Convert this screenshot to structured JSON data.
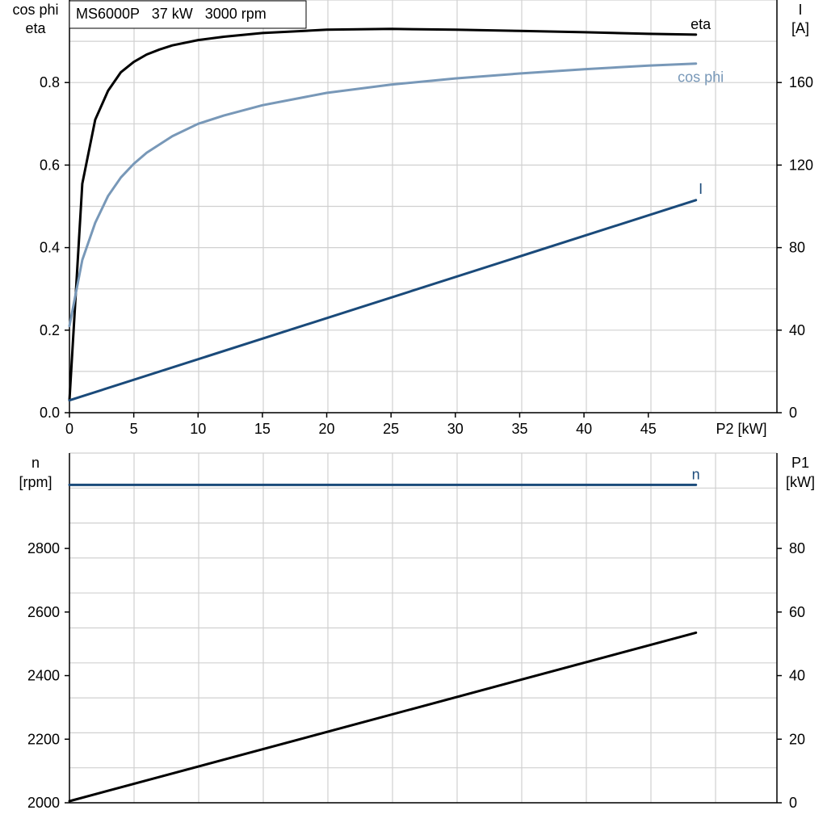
{
  "title": "MS6000P   37 kW   3000 rpm",
  "chart_data": [
    {
      "type": "line",
      "xlabel": "P2 [kW]",
      "xlim": [
        0,
        55
      ],
      "x_ticks": [
        "0",
        "5",
        "10",
        "15",
        "20",
        "25",
        "30",
        "35",
        "40",
        "45"
      ],
      "ylabel_left": [
        "cos phi",
        "eta"
      ],
      "ylim_left": [
        0,
        1.0
      ],
      "y_ticks_left": [
        "0.0",
        "0.2",
        "0.4",
        "0.6",
        "0.8"
      ],
      "ylabel_right": [
        "I",
        "[A]"
      ],
      "ylim_right": [
        0,
        200
      ],
      "y_ticks_right": [
        "0",
        "40",
        "80",
        "120",
        "160"
      ],
      "grid": true,
      "series": [
        {
          "name": "eta",
          "axis": "left",
          "color": "#000000",
          "x": [
            0,
            1,
            2,
            3,
            4,
            5,
            6,
            7,
            8,
            10,
            12,
            15,
            20,
            25,
            30,
            35,
            40,
            45,
            48.7
          ],
          "y": [
            0.03,
            0.555,
            0.71,
            0.78,
            0.825,
            0.85,
            0.868,
            0.88,
            0.89,
            0.903,
            0.911,
            0.92,
            0.928,
            0.93,
            0.928,
            0.925,
            0.922,
            0.918,
            0.916
          ]
        },
        {
          "name": "cos phi",
          "axis": "left",
          "color": "#7898b8",
          "x": [
            0,
            1,
            2,
            3,
            4,
            5,
            6,
            8,
            10,
            12,
            15,
            20,
            25,
            30,
            35,
            40,
            45,
            48.7
          ],
          "y": [
            0.21,
            0.37,
            0.46,
            0.525,
            0.57,
            0.603,
            0.63,
            0.67,
            0.7,
            0.72,
            0.745,
            0.775,
            0.795,
            0.81,
            0.822,
            0.832,
            0.841,
            0.846
          ]
        },
        {
          "name": "I",
          "axis": "right",
          "color": "#1a4a7a",
          "x": [
            0,
            48.7
          ],
          "y": [
            6,
            103
          ]
        }
      ]
    },
    {
      "type": "line",
      "xlim": [
        0,
        55
      ],
      "ylabel_left": [
        "n",
        "[rpm]"
      ],
      "ylim_left": [
        2000,
        3100
      ],
      "y_ticks_left": [
        "2000",
        "2200",
        "2400",
        "2600",
        "2800"
      ],
      "ylabel_right": [
        "P1",
        "[kW]"
      ],
      "ylim_right": [
        0,
        110
      ],
      "y_ticks_right": [
        "0",
        "20",
        "40",
        "60",
        "80"
      ],
      "grid": true,
      "series": [
        {
          "name": "n",
          "axis": "left",
          "color": "#1a4a7a",
          "x": [
            0,
            48.7
          ],
          "y": [
            3000,
            3000
          ]
        },
        {
          "name": "",
          "axis": "right",
          "color": "#000000",
          "x": [
            0,
            48.7
          ],
          "y": [
            0.5,
            53.5
          ]
        }
      ]
    }
  ]
}
